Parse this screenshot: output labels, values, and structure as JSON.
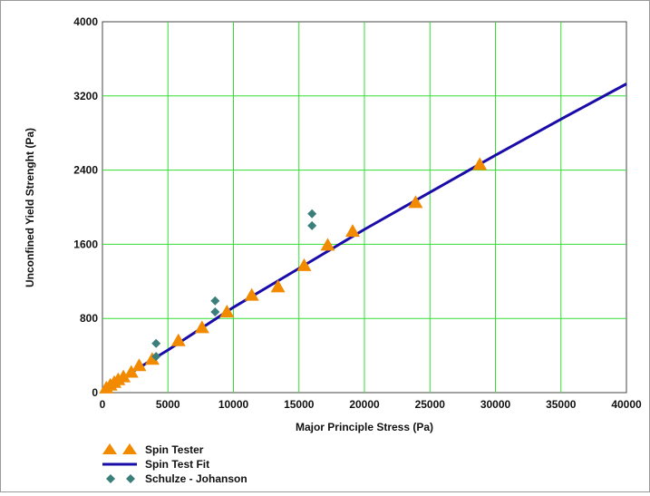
{
  "chart_data": {
    "type": "scatter",
    "xlabel": "Major Principle Stress (Pa)",
    "ylabel": "Unconfined Yield Strenght (Pa)",
    "xlim": [
      0,
      40000
    ],
    "ylim": [
      0,
      4000
    ],
    "x_ticks": [
      "0",
      "5000",
      "10000",
      "15000",
      "20000",
      "25000",
      "30000",
      "35000",
      "40000"
    ],
    "y_ticks": [
      "0",
      "800",
      "1600",
      "2400",
      "3200",
      "4000"
    ],
    "grid": true,
    "legend_placement": "bottom-left",
    "colors": {
      "grid": "#33dd33",
      "spin_tester": "#f28a00",
      "spin_test_fit": "#1a0ca8",
      "schulze_johanson": "#3a7f7a"
    },
    "series": [
      {
        "name": "Spin Tester",
        "kind": "triangle",
        "points": [
          [
            300,
            50
          ],
          [
            600,
            80
          ],
          [
            900,
            110
          ],
          [
            1200,
            140
          ],
          [
            1600,
            170
          ],
          [
            2200,
            220
          ],
          [
            2800,
            290
          ],
          [
            3800,
            360
          ],
          [
            5800,
            560
          ],
          [
            7600,
            700
          ],
          [
            9500,
            870
          ],
          [
            11400,
            1050
          ],
          [
            13400,
            1140
          ],
          [
            15400,
            1370
          ],
          [
            17200,
            1590
          ],
          [
            19100,
            1740
          ],
          [
            23900,
            2050
          ],
          [
            28800,
            2460
          ]
        ]
      },
      {
        "name": "Spin Test Fit",
        "kind": "line",
        "points": [
          [
            0,
            20
          ],
          [
            2000,
            200
          ],
          [
            5000,
            460
          ],
          [
            10000,
            920
          ],
          [
            15000,
            1340
          ],
          [
            20000,
            1760
          ],
          [
            25000,
            2160
          ],
          [
            30000,
            2560
          ],
          [
            35000,
            2950
          ],
          [
            40000,
            3330
          ]
        ]
      },
      {
        "name": "Schulze - Johanson",
        "kind": "diamond",
        "points": [
          [
            4100,
            390
          ],
          [
            4100,
            530
          ],
          [
            8600,
            870
          ],
          [
            8600,
            990
          ],
          [
            16000,
            1800
          ],
          [
            16000,
            1930
          ]
        ]
      }
    ],
    "legend": [
      "Spin Tester",
      "Spin Test Fit",
      "Schulze - Johanson"
    ]
  }
}
